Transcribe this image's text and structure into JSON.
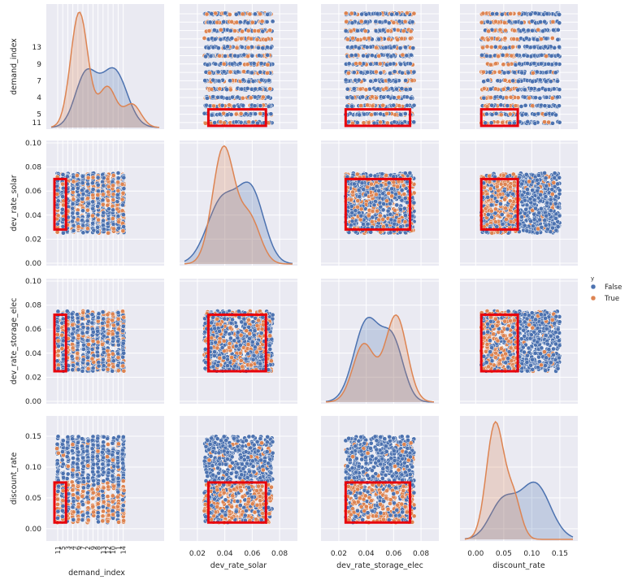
{
  "chart_data": {
    "type": "scatter",
    "subtype": "pairplot",
    "variables": [
      "demand_index",
      "dev_rate_solar",
      "dev_rate_storage_elec",
      "discount_rate"
    ],
    "axis_labels": {
      "demand_index": "demand_index",
      "dev_rate_solar": "dev_rate_solar",
      "dev_rate_storage_elec": "dev_rate_storage_elec",
      "discount_rate": "discount_rate"
    },
    "demand_index_categories": [
      "11",
      "5",
      "3",
      "4",
      "6",
      "7",
      "2",
      "9",
      "8",
      "13",
      "12",
      "10",
      "1",
      "14"
    ],
    "demand_index_tick_labels": [
      "13",
      "9",
      "7",
      "4",
      "5",
      "11"
    ],
    "axis_ticks": {
      "dev_rate_solar": [
        0.0,
        0.02,
        0.04,
        0.06,
        0.08,
        0.1
      ],
      "dev_rate_storage_elec": [
        0.0,
        0.02,
        0.04,
        0.06,
        0.08,
        0.1
      ],
      "discount_rate": [
        0.0,
        0.05,
        0.1,
        0.15
      ],
      "dev_rate_solar_x": [
        0.02,
        0.04,
        0.06,
        0.08
      ],
      "dev_rate_storage_elec_x": [
        0.02,
        0.04,
        0.06,
        0.08
      ],
      "discount_rate_x": [
        0.0,
        0.05,
        0.1,
        0.15
      ]
    },
    "tick_labels": {
      "dev_rate_solar": [
        "0.00",
        "0.02",
        "0.04",
        "0.06",
        "0.08",
        "0.10"
      ],
      "dev_rate_storage_elec": [
        "0.00",
        "0.02",
        "0.04",
        "0.06",
        "0.08",
        "0.10"
      ],
      "discount_rate": [
        "0.00",
        "0.05",
        "0.10",
        "0.15"
      ],
      "dev_rate_solar_x": [
        "0.02",
        "0.04",
        "0.06",
        "0.08"
      ],
      "dev_rate_storage_elec_x": [
        "0.02",
        "0.04",
        "0.06",
        "0.08"
      ],
      "discount_rate_x": [
        "0.00",
        "0.05",
        "0.10",
        "0.15"
      ]
    },
    "ranges": {
      "demand_index": [
        0,
        15
      ],
      "dev_rate_solar": [
        0.025,
        0.075
      ],
      "dev_rate_storage_elec": [
        0.025,
        0.075
      ],
      "discount_rate": [
        0.01,
        0.15
      ]
    },
    "highlight_box": {
      "demand_index": [
        "11",
        "5"
      ],
      "dev_rate_solar": [
        0.028,
        0.07
      ],
      "dev_rate_storage_elec": [
        0.025,
        0.072
      ],
      "discount_rate": [
        0.01,
        0.075
      ]
    },
    "highlight_color": "#e8000b",
    "series": [
      {
        "name": "False",
        "color": "#4c72b0"
      },
      {
        "name": "True",
        "color": "#dd8452"
      }
    ],
    "legend": {
      "title": "y",
      "placement": "right"
    },
    "grid": true,
    "background": "#eaeaf2"
  }
}
